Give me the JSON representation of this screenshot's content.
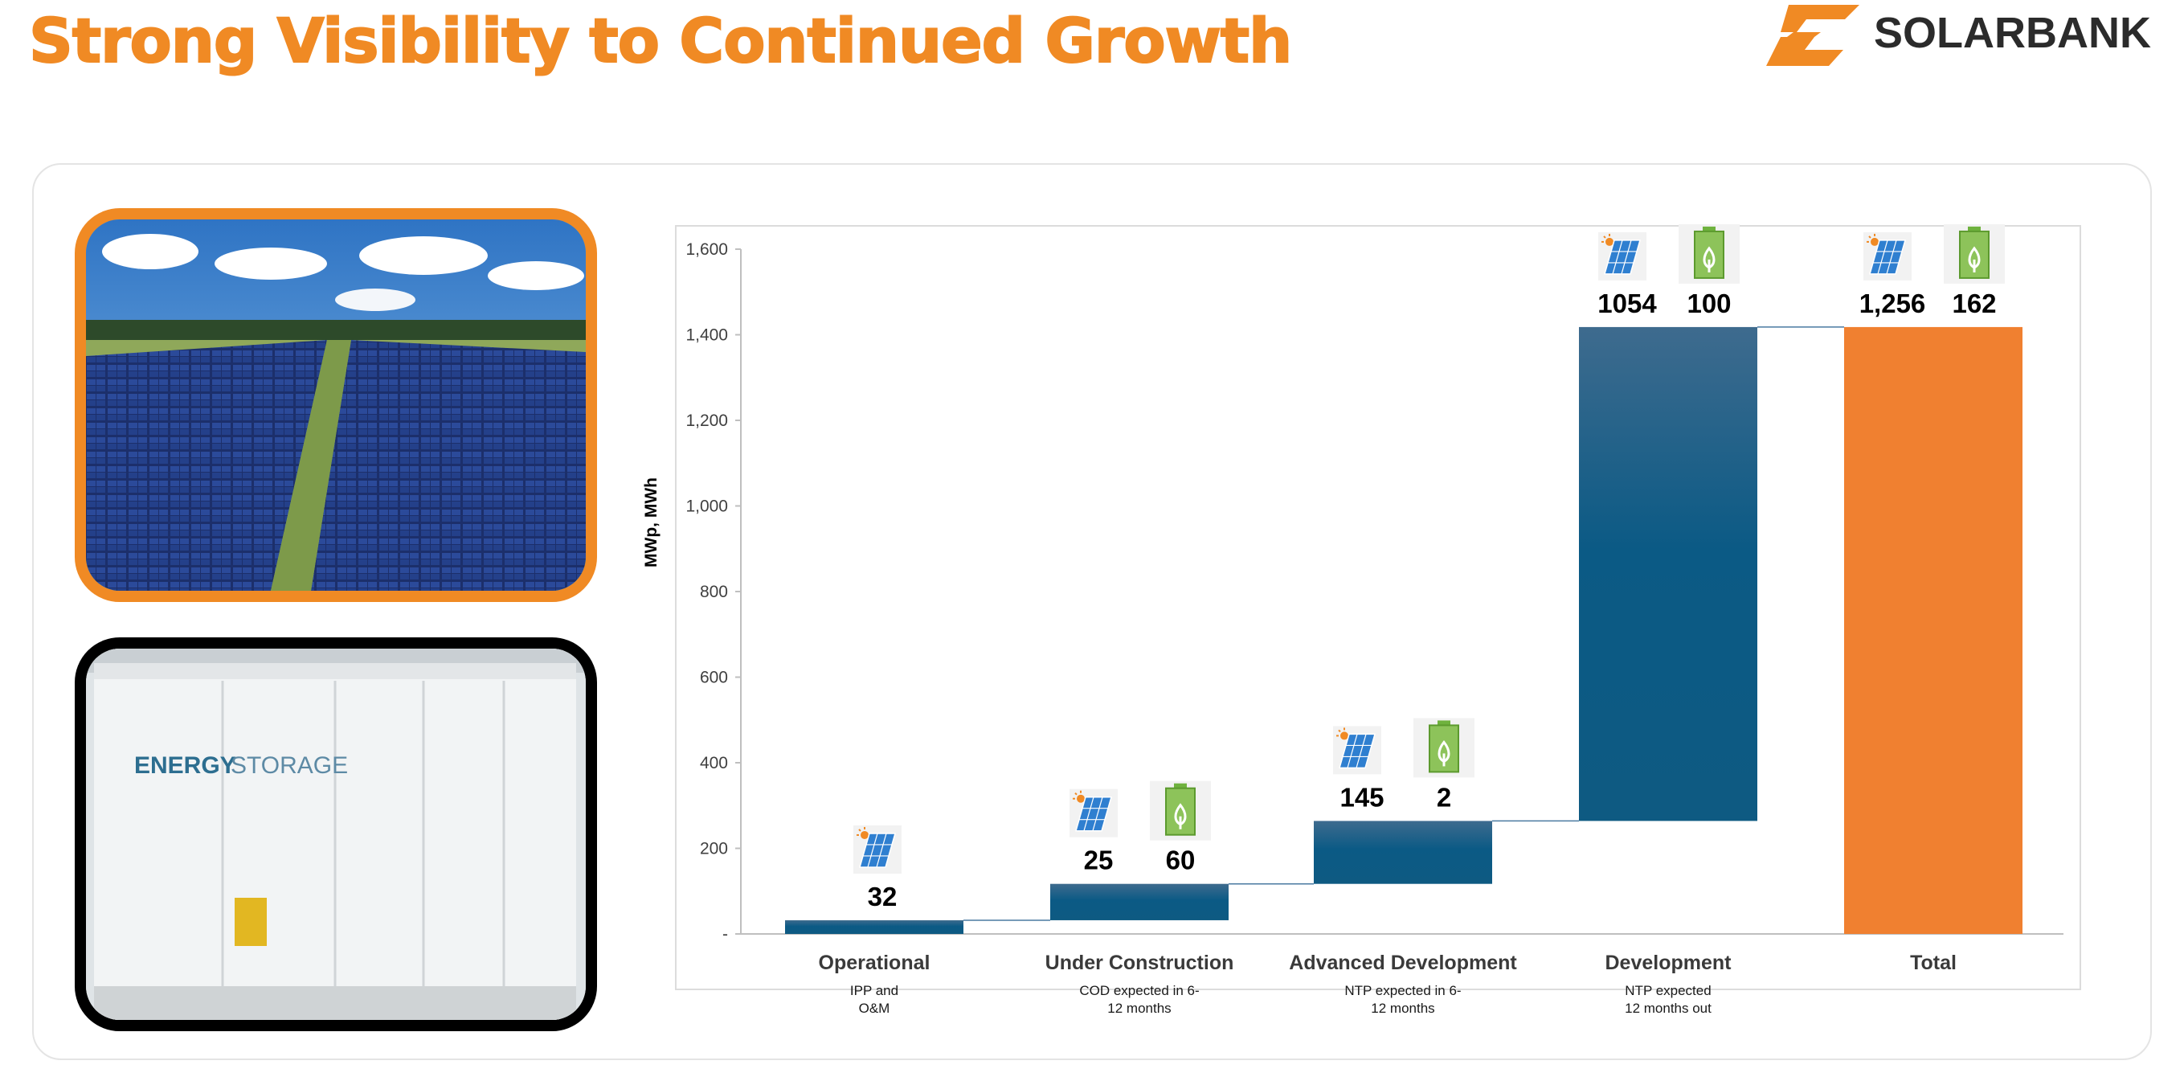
{
  "header": {
    "title": "Strong Visibility to Continued Growth",
    "logo_text": "SOLARBANK"
  },
  "photos": {
    "storage_label_a": "ENERGY",
    "storage_label_b": "STORAGE"
  },
  "colors": {
    "accent": "#F08A24",
    "bar_blue_top": "#3E6B8E",
    "bar_blue_bottom": "#0B5A85",
    "total_bar": "#F08030",
    "connector": "#4A7AA0"
  },
  "chart_data": {
    "type": "waterfall",
    "ylabel": "MWp, MWh",
    "ylim": [
      0,
      1600
    ],
    "yticks": [
      0,
      200,
      400,
      600,
      800,
      1000,
      1200,
      1400,
      1600
    ],
    "ytick_labels": [
      "-",
      "200",
      "400",
      "600",
      "800",
      "1,000",
      "1,200",
      "1,400",
      "1,600"
    ],
    "categories": [
      {
        "name": "Operational",
        "sub": [
          "IPP and",
          "O&M"
        ],
        "solar": "32",
        "storage": "",
        "value": 32,
        "base": 0,
        "color": "blue"
      },
      {
        "name": "Under Construction",
        "sub": [
          "COD expected in 6-",
          "12 months"
        ],
        "solar": "25",
        "storage": "60",
        "value": 85,
        "base": 32,
        "color": "blue"
      },
      {
        "name": "Advanced Development",
        "sub": [
          "NTP expected in 6-",
          "12 months"
        ],
        "solar": "145",
        "storage": "2",
        "value": 147,
        "base": 117,
        "color": "blue"
      },
      {
        "name": "Development",
        "sub": [
          "NTP expected",
          "12 months out"
        ],
        "solar": "1054",
        "storage": "100",
        "value": 1154,
        "base": 264,
        "color": "blue"
      },
      {
        "name": "Total",
        "sub": [],
        "solar": "1,256",
        "storage": "162",
        "value": 1418,
        "base": 0,
        "color": "orange"
      }
    ]
  }
}
